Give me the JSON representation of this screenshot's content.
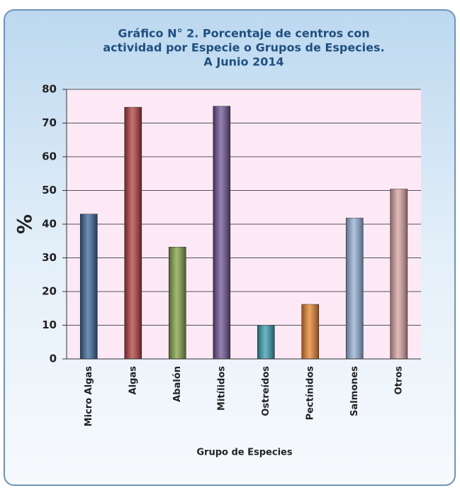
{
  "chart_data": {
    "type": "bar",
    "title": [
      "Gráfico N° 2. Porcentaje de centros con",
      "actividad por Especie o Grupos de Especies.",
      "A Junio  2014"
    ],
    "x_label": "Grupo de Especies",
    "y_label": "%",
    "categories": [
      "Micro Algas",
      "Algas",
      "Abalón",
      "Mitílidos",
      "Ostreídos",
      "Pectínidos",
      "Salmones",
      "Otros"
    ],
    "values": [
      43,
      74.7,
      33.2,
      75,
      10,
      16.2,
      41.8,
      50.4
    ],
    "colors": [
      "#2f5d91",
      "#aa3434",
      "#7b9b3b",
      "#664a8c",
      "#2e96aa",
      "#e07b22",
      "#8eaad2",
      "#d59c9c"
    ],
    "ylim": [
      0,
      80
    ],
    "yticks": [
      0,
      10,
      20,
      30,
      40,
      50,
      60,
      70,
      80
    ],
    "grid": true
  }
}
